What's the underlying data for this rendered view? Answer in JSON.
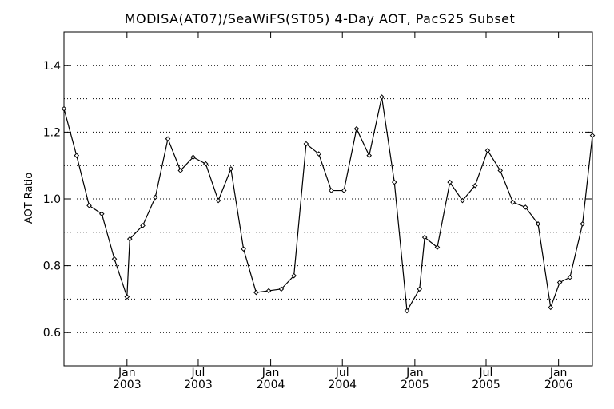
{
  "chart_data": {
    "type": "line",
    "title": "MODISA(AT07)/SeaWiFS(ST05) 4-Day AOT, PacS25 Subset",
    "xlabel": "",
    "ylabel": "AOT Ratio",
    "ylim": [
      0.5,
      1.5
    ],
    "xlim": [
      "2002-07-25",
      "2006-03-28"
    ],
    "yticks": [
      "0.6",
      "0.8",
      "1.0",
      "1.2",
      "1.4"
    ],
    "grid": {
      "horizontal": true,
      "step": 0.1
    },
    "x_ticks": [
      {
        "top": "Jan",
        "bottom": "2003",
        "date": "2003-01-01"
      },
      {
        "top": "Jul",
        "bottom": "2003",
        "date": "2003-07-01"
      },
      {
        "top": "Jan",
        "bottom": "2004",
        "date": "2004-01-01"
      },
      {
        "top": "Jul",
        "bottom": "2004",
        "date": "2004-07-01"
      },
      {
        "top": "Jan",
        "bottom": "2005",
        "date": "2005-01-01"
      },
      {
        "top": "Jul",
        "bottom": "2005",
        "date": "2005-07-01"
      },
      {
        "top": "Jan",
        "bottom": "2006",
        "date": "2006-01-01"
      }
    ],
    "series": [
      {
        "color": "#000000",
        "marker": "diamond",
        "x": [
          "2002-07-25",
          "2002-08-26",
          "2002-09-27",
          "2002-10-29",
          "2002-11-30",
          "2003-01-01",
          "2003-01-08",
          "2003-02-10",
          "2003-03-14",
          "2003-04-15",
          "2003-05-17",
          "2003-06-18",
          "2003-07-20",
          "2003-08-21",
          "2003-09-22",
          "2003-10-24",
          "2003-11-25",
          "2003-12-27",
          "2004-01-28",
          "2004-02-29",
          "2004-03-31",
          "2004-05-02",
          "2004-06-03",
          "2004-07-05",
          "2004-08-06",
          "2004-09-07",
          "2004-10-09",
          "2004-11-10",
          "2004-12-12",
          "2005-01-13",
          "2005-01-26",
          "2005-02-27",
          "2005-03-31",
          "2005-05-02",
          "2005-06-03",
          "2005-07-05",
          "2005-08-06",
          "2005-09-07",
          "2005-10-09",
          "2005-11-10",
          "2005-12-12",
          "2006-01-04",
          "2006-01-30",
          "2006-03-03",
          "2006-03-28"
        ],
        "y": [
          1.27,
          1.13,
          0.98,
          0.955,
          0.82,
          0.707,
          0.88,
          0.92,
          1.005,
          1.18,
          1.085,
          1.125,
          1.105,
          0.995,
          1.09,
          0.85,
          0.72,
          0.725,
          0.73,
          0.77,
          1.165,
          1.135,
          1.025,
          1.025,
          1.21,
          1.13,
          1.305,
          1.05,
          0.665,
          0.73,
          0.885,
          0.855,
          1.05,
          0.995,
          1.04,
          1.145,
          1.085,
          0.99,
          0.975,
          0.925,
          0.675,
          0.75,
          0.765,
          0.925,
          1.19
        ]
      }
    ]
  }
}
